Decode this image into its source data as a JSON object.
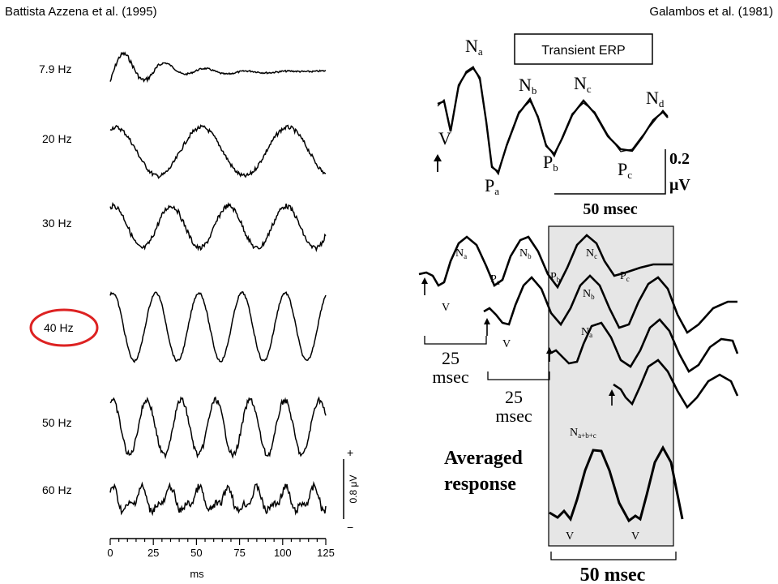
{
  "header": {
    "left_citation": "Battista Azzena et al. (1995)",
    "right_citation": "Galambos et al. (1981)"
  },
  "chart_data": [
    {
      "type": "line",
      "panel": "left",
      "rates": [
        {
          "label": "7.9 Hz",
          "freq": 7.9,
          "highlighted": false
        },
        {
          "label": "20 Hz",
          "freq": 20,
          "highlighted": false
        },
        {
          "label": "30 Hz",
          "freq": 30,
          "highlighted": false
        },
        {
          "label": "40 Hz",
          "freq": 40,
          "highlighted": true
        },
        {
          "label": "50 Hz",
          "freq": 50,
          "highlighted": false
        },
        {
          "label": "60 Hz",
          "freq": 60,
          "highlighted": false
        }
      ],
      "xlabel": "ms",
      "xticks": [
        "0",
        "25",
        "50",
        "75",
        "100",
        "125"
      ],
      "xlim": [
        0,
        125
      ],
      "scale_bar": {
        "label": "0.8 μV",
        "plus": "+",
        "minus": "−"
      },
      "highlight_color": "#dd2222"
    },
    {
      "type": "line",
      "panel": "right-top",
      "box_label": "Transient ERP",
      "peaks": [
        "N",
        "N",
        "N",
        "N",
        "V",
        "P",
        "P",
        "P"
      ],
      "peak_subs": [
        "a",
        "b",
        "c",
        "d",
        "",
        "a",
        "b",
        "c"
      ],
      "scale_value": "0.2",
      "scale_unit": "μV",
      "time_bar": "50 msec"
    },
    {
      "type": "line",
      "panel": "right-bottom",
      "labels_n": [
        "N",
        "N",
        "N",
        "N",
        "N"
      ],
      "labels_n_subs": [
        "a",
        "b",
        "c",
        "b",
        "a"
      ],
      "labels_p": [
        "P",
        "P",
        "P"
      ],
      "labels_p_subs": [
        "a",
        "b",
        "c"
      ],
      "v_label": "V",
      "bar1_value": "25",
      "bar1_unit": "msec",
      "bar2_value": "25",
      "bar2_unit": "msec",
      "nabc": "N",
      "nabc_sub": "a+b+c",
      "averaged_line1": "Averaged",
      "averaged_line2": "response",
      "time_bar": "50 msec"
    }
  ]
}
